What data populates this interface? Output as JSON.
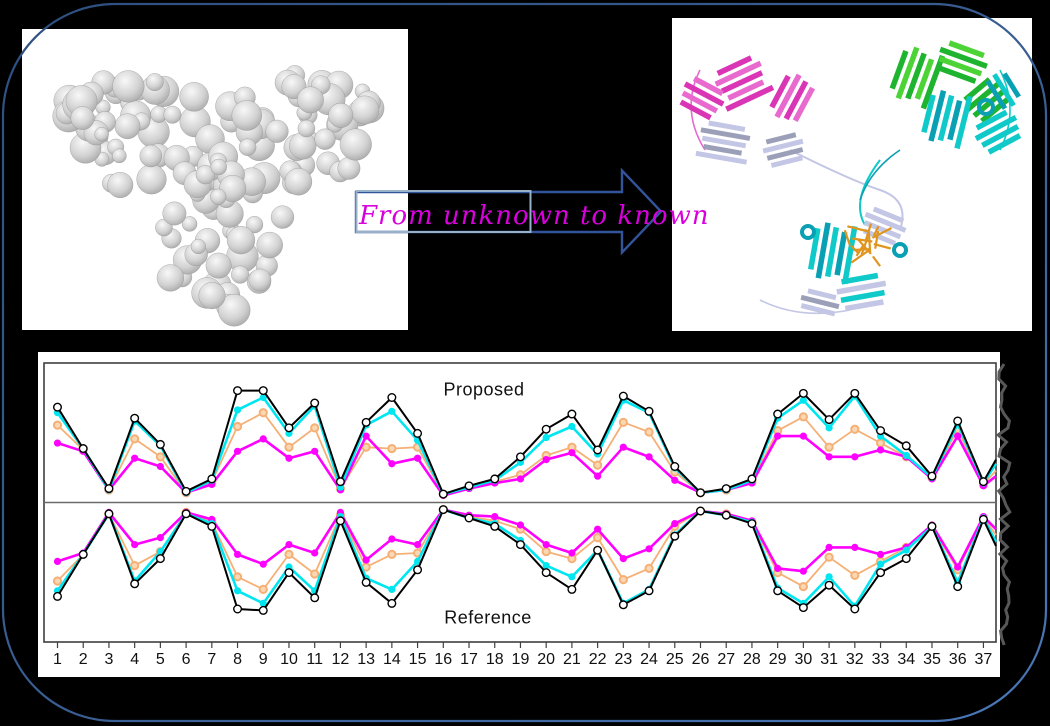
{
  "figure": {
    "background": "#000000",
    "border_color": "#3A5F94"
  },
  "transition": {
    "label": "From unknown to known",
    "text_color": "#D800DC",
    "arrow_border_color": "#33549B",
    "box_border_color": "#97B1CB"
  },
  "panels": {
    "unknown": {
      "description": "antibody surface model, gray"
    },
    "known": {
      "description": "antibody ribbon model, colored domains"
    }
  },
  "ribbon_palette": {
    "magenta": "#D935B5",
    "pink": "#E86ACF",
    "green": "#1FB42F",
    "light_green": "#4CD437",
    "cyan": "#10C9C9",
    "teal": "#0AA0B4",
    "lavender": "#C3C6E4",
    "gray": "#9BA0B8",
    "orange": "#E0951F",
    "surface_gray": "#D2D2D2"
  },
  "chart_data": {
    "type": "line",
    "mirrored": true,
    "top_label": "Proposed",
    "bottom_label": "Reference",
    "xlabel": "",
    "ylabel": "",
    "ylim": [
      0,
      1
    ],
    "grid": false,
    "legend": "none",
    "categories": [
      "1",
      "2",
      "3",
      "4",
      "5",
      "6",
      "7",
      "8",
      "9",
      "10",
      "11",
      "12",
      "13",
      "14",
      "15",
      "16",
      "17",
      "18",
      "19",
      "20",
      "21",
      "22",
      "23",
      "24",
      "25",
      "26",
      "27",
      "28",
      "29",
      "30",
      "31",
      "32",
      "33",
      "34",
      "35",
      "36",
      "37"
    ],
    "series": [
      {
        "name": "envelope-black",
        "color": "#000000",
        "marker": "open-circle",
        "marker_fill": "#FFFFFF",
        "line_width": 2,
        "proposed": [
          0.68,
          0.38,
          0.09,
          0.6,
          0.41,
          0.07,
          0.16,
          0.8,
          0.8,
          0.53,
          0.71,
          0.14,
          0.57,
          0.75,
          0.49,
          0.05,
          0.11,
          0.16,
          0.32,
          0.52,
          0.63,
          0.37,
          0.76,
          0.65,
          0.25,
          0.06,
          0.09,
          0.16,
          0.63,
          0.78,
          0.59,
          0.78,
          0.51,
          0.4,
          0.18,
          0.58,
          0.14
        ],
        "reference": [
          0.66,
          0.36,
          0.07,
          0.57,
          0.39,
          0.07,
          0.16,
          0.75,
          0.76,
          0.49,
          0.67,
          0.12,
          0.56,
          0.71,
          0.47,
          0.04,
          0.1,
          0.16,
          0.29,
          0.49,
          0.61,
          0.33,
          0.72,
          0.62,
          0.23,
          0.05,
          0.08,
          0.14,
          0.62,
          0.74,
          0.58,
          0.75,
          0.49,
          0.39,
          0.16,
          0.59,
          0.11
        ]
      },
      {
        "name": "cyan",
        "color": "#00E6F0",
        "marker": "filled-circle",
        "marker_fill": "#00E6F0",
        "line_width": 2.6,
        "proposed": [
          0.64,
          0.38,
          0.08,
          0.58,
          0.4,
          0.06,
          0.15,
          0.66,
          0.75,
          0.49,
          0.69,
          0.1,
          0.55,
          0.65,
          0.44,
          0.05,
          0.1,
          0.15,
          0.28,
          0.46,
          0.54,
          0.34,
          0.73,
          0.64,
          0.24,
          0.06,
          0.08,
          0.15,
          0.6,
          0.73,
          0.53,
          0.76,
          0.47,
          0.33,
          0.17,
          0.56,
          0.13
        ],
        "reference": [
          0.62,
          0.36,
          0.07,
          0.55,
          0.34,
          0.07,
          0.14,
          0.62,
          0.71,
          0.45,
          0.62,
          0.09,
          0.53,
          0.61,
          0.41,
          0.04,
          0.1,
          0.14,
          0.26,
          0.44,
          0.52,
          0.33,
          0.71,
          0.61,
          0.22,
          0.05,
          0.08,
          0.13,
          0.6,
          0.71,
          0.52,
          0.73,
          0.43,
          0.33,
          0.16,
          0.56,
          0.1
        ]
      },
      {
        "name": "orange",
        "color": "#F5B076",
        "marker": "ring-circle",
        "marker_fill": "#FBD8B4",
        "line_width": 1.8,
        "proposed": [
          0.55,
          0.37,
          0.08,
          0.45,
          0.32,
          0.06,
          0.14,
          0.54,
          0.64,
          0.39,
          0.53,
          0.09,
          0.39,
          0.38,
          0.39,
          0.05,
          0.1,
          0.14,
          0.19,
          0.33,
          0.39,
          0.26,
          0.57,
          0.5,
          0.21,
          0.06,
          0.08,
          0.14,
          0.51,
          0.61,
          0.39,
          0.52,
          0.42,
          0.32,
          0.17,
          0.52,
          0.12
        ],
        "reference": [
          0.55,
          0.36,
          0.07,
          0.44,
          0.34,
          0.06,
          0.13,
          0.52,
          0.61,
          0.36,
          0.5,
          0.08,
          0.45,
          0.36,
          0.35,
          0.04,
          0.09,
          0.12,
          0.18,
          0.34,
          0.39,
          0.24,
          0.54,
          0.46,
          0.16,
          0.05,
          0.07,
          0.13,
          0.49,
          0.59,
          0.38,
          0.51,
          0.41,
          0.31,
          0.16,
          0.47,
          0.1
        ]
      },
      {
        "name": "magenta",
        "color": "#FF00FF",
        "marker": "filled-circle",
        "marker_fill": "#FF00FF",
        "line_width": 2.6,
        "proposed": [
          0.42,
          0.36,
          0.08,
          0.31,
          0.25,
          0.06,
          0.12,
          0.36,
          0.45,
          0.31,
          0.36,
          0.08,
          0.47,
          0.27,
          0.31,
          0.04,
          0.09,
          0.13,
          0.16,
          0.3,
          0.35,
          0.18,
          0.39,
          0.32,
          0.15,
          0.06,
          0.08,
          0.13,
          0.47,
          0.47,
          0.32,
          0.32,
          0.37,
          0.32,
          0.16,
          0.47,
          0.11
        ],
        "reference": [
          0.41,
          0.35,
          0.06,
          0.29,
          0.24,
          0.06,
          0.11,
          0.36,
          0.43,
          0.29,
          0.35,
          0.06,
          0.4,
          0.25,
          0.29,
          0.04,
          0.08,
          0.09,
          0.15,
          0.29,
          0.35,
          0.18,
          0.39,
          0.32,
          0.14,
          0.05,
          0.07,
          0.12,
          0.46,
          0.48,
          0.31,
          0.31,
          0.36,
          0.31,
          0.15,
          0.45,
          0.09
        ]
      }
    ],
    "frame_color": "#3F3F3F",
    "midline_color": "#6A6A6A",
    "tick_label_color": "#111111"
  }
}
